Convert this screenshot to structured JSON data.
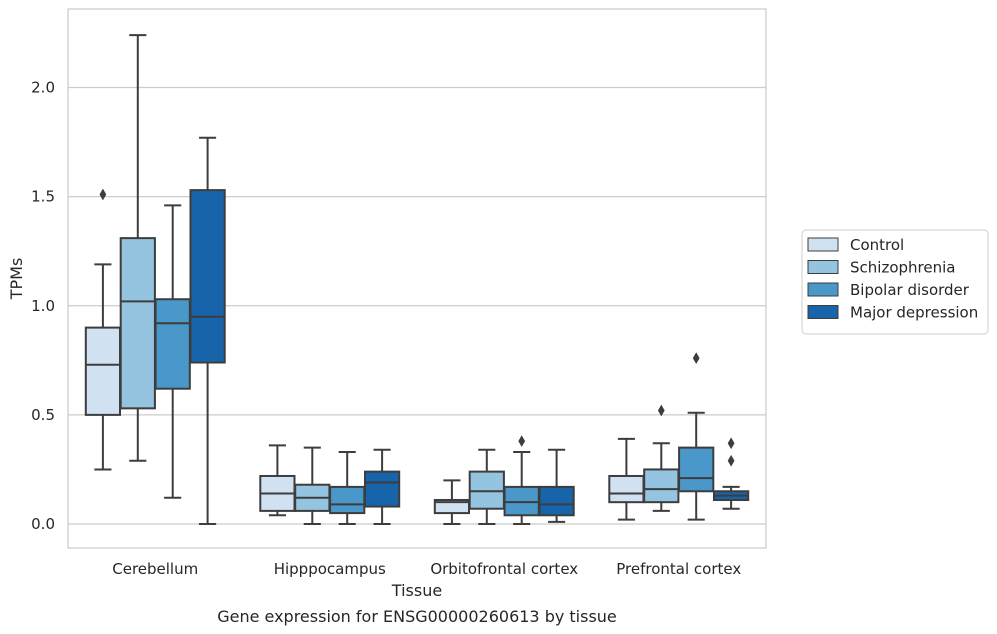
{
  "chart_data": {
    "type": "boxplot",
    "title": "",
    "caption": "Gene expression for ENSG00000260613 by tissue",
    "xlabel": "Tissue",
    "ylabel": "TPMs",
    "ylim": [
      -0.11,
      2.36
    ],
    "yticks": [
      "0.0",
      "0.5",
      "1.0",
      "1.5",
      "2.0"
    ],
    "ytick_values": [
      0.0,
      0.5,
      1.0,
      1.5,
      2.0
    ],
    "grid": "horizontal",
    "legend_position": "right",
    "categories": [
      "Cerebellum",
      "Hipppocampus",
      "Orbitofrontal cortex",
      "Prefrontal cortex"
    ],
    "series": [
      {
        "name": "Control",
        "color": "#d0e1f2",
        "boxes": [
          {
            "whisker_low": 0.25,
            "q1": 0.5,
            "median": 0.73,
            "q3": 0.9,
            "whisker_high": 1.19,
            "outliers": [
              1.51
            ]
          },
          {
            "whisker_low": 0.04,
            "q1": 0.06,
            "median": 0.14,
            "q3": 0.22,
            "whisker_high": 0.36,
            "outliers": []
          },
          {
            "whisker_low": 0.0,
            "q1": 0.05,
            "median": 0.1,
            "q3": 0.11,
            "whisker_high": 0.2,
            "outliers": []
          },
          {
            "whisker_low": 0.02,
            "q1": 0.1,
            "median": 0.14,
            "q3": 0.22,
            "whisker_high": 0.39,
            "outliers": []
          }
        ]
      },
      {
        "name": "Schizophrenia",
        "color": "#94c4df",
        "boxes": [
          {
            "whisker_low": 0.29,
            "q1": 0.53,
            "median": 1.02,
            "q3": 1.31,
            "whisker_high": 2.24,
            "outliers": []
          },
          {
            "whisker_low": 0.0,
            "q1": 0.06,
            "median": 0.12,
            "q3": 0.18,
            "whisker_high": 0.35,
            "outliers": []
          },
          {
            "whisker_low": 0.0,
            "q1": 0.07,
            "median": 0.15,
            "q3": 0.24,
            "whisker_high": 0.34,
            "outliers": []
          },
          {
            "whisker_low": 0.06,
            "q1": 0.1,
            "median": 0.16,
            "q3": 0.25,
            "whisker_high": 0.37,
            "outliers": [
              0.52
            ]
          }
        ]
      },
      {
        "name": "Bipolar disorder",
        "color": "#4a98c9",
        "boxes": [
          {
            "whisker_low": 0.12,
            "q1": 0.62,
            "median": 0.92,
            "q3": 1.03,
            "whisker_high": 1.46,
            "outliers": []
          },
          {
            "whisker_low": 0.0,
            "q1": 0.05,
            "median": 0.09,
            "q3": 0.17,
            "whisker_high": 0.33,
            "outliers": []
          },
          {
            "whisker_low": 0.0,
            "q1": 0.04,
            "median": 0.1,
            "q3": 0.17,
            "whisker_high": 0.33,
            "outliers": [
              0.38
            ]
          },
          {
            "whisker_low": 0.02,
            "q1": 0.15,
            "median": 0.21,
            "q3": 0.35,
            "whisker_high": 0.51,
            "outliers": [
              0.76
            ]
          }
        ]
      },
      {
        "name": "Major depression",
        "color": "#1764ab",
        "boxes": [
          {
            "whisker_low": 0.0,
            "q1": 0.74,
            "median": 0.95,
            "q3": 1.53,
            "whisker_high": 1.77,
            "outliers": []
          },
          {
            "whisker_low": 0.0,
            "q1": 0.08,
            "median": 0.19,
            "q3": 0.24,
            "whisker_high": 0.34,
            "outliers": []
          },
          {
            "whisker_low": 0.01,
            "q1": 0.04,
            "median": 0.09,
            "q3": 0.17,
            "whisker_high": 0.34,
            "outliers": []
          },
          {
            "whisker_low": 0.07,
            "q1": 0.11,
            "median": 0.13,
            "q3": 0.15,
            "whisker_high": 0.17,
            "outliers": [
              0.29,
              0.37
            ]
          }
        ]
      }
    ]
  }
}
